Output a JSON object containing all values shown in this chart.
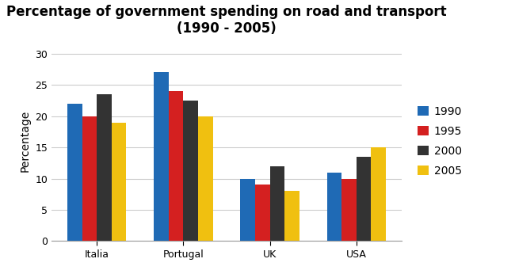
{
  "title": "Percentage of government spending on road and transport\n(1990 - 2005)",
  "categories": [
    "Italia",
    "Portugal",
    "UK",
    "USA"
  ],
  "years": [
    "1990",
    "1995",
    "2000",
    "2005"
  ],
  "values": {
    "Italia": [
      22,
      20,
      23.5,
      19
    ],
    "Portugal": [
      27,
      24,
      22.5,
      20
    ],
    "UK": [
      10,
      9,
      12,
      8
    ],
    "USA": [
      11,
      10,
      13.5,
      15
    ]
  },
  "colors": {
    "1990": "#1f6ab5",
    "1995": "#d42020",
    "2000": "#333333",
    "2005": "#f0c010"
  },
  "ylabel": "Percentage",
  "ylim": [
    0,
    32
  ],
  "yticks": [
    0,
    5,
    10,
    15,
    20,
    25,
    30
  ],
  "bar_width": 0.17,
  "background_color": "#ffffff",
  "title_fontsize": 12,
  "axis_label_fontsize": 10,
  "tick_fontsize": 9,
  "legend_fontsize": 10
}
